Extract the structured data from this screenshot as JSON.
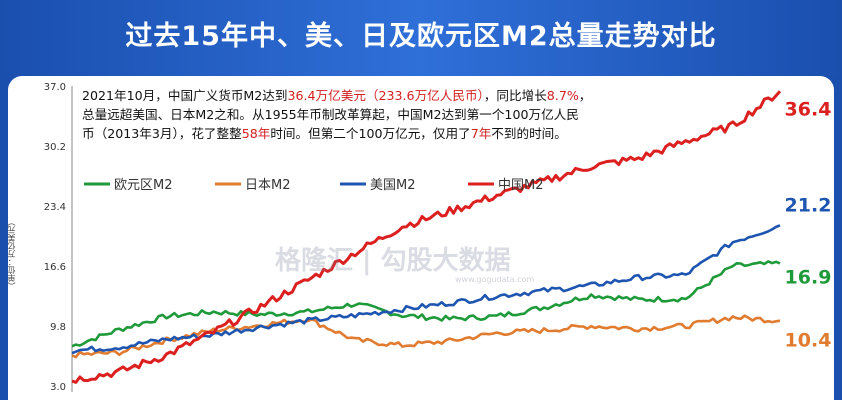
{
  "header": {
    "title": "过去15年中、美、日及欧元区M2总量走势对比"
  },
  "annotation": {
    "seg1": "2021年10月，中国广义货币M2达到",
    "seg2": "36.4万亿美元（233.6万亿人民币）",
    "seg3": "，同比增长",
    "seg4": "8.7%",
    "seg5": "，",
    "seg6": "总量远超美国、日本M2之和。从1955年币制改革算起，中国M2达到第一个100万亿人民",
    "seg7": "币（2013年3月），花了整整",
    "seg8": "58年",
    "seg9": "时间。但第二个100万亿元，仅用了",
    "seg10": "7年",
    "seg11": "不到的时间。"
  },
  "watermark": {
    "text": "格隆汇 | 勾股大数据",
    "url": "www.gogudata.com"
  },
  "colors": {
    "eurozone": "#1f9a3a",
    "japan": "#e07b2f",
    "usa": "#1d55b0",
    "china": "#dc1f1f",
    "highlight": "#d31f1f"
  },
  "chart_data": {
    "type": "line",
    "ylabel": "（单位：万亿美元）",
    "yticks": [
      "37.0",
      "30.2",
      "23.4",
      "16.6",
      "9.8",
      "3.0"
    ],
    "ylim": [
      3.0,
      37.0
    ],
    "grid": false,
    "legend_position": "top-left",
    "x": [
      0,
      1,
      2,
      3,
      4,
      5,
      6,
      7,
      8,
      9,
      10,
      11,
      12,
      13,
      14,
      15
    ],
    "series": [
      {
        "name": "欧元区M2",
        "color": "#1f9a3a",
        "values": [
          7.5,
          9.4,
          10.9,
          11.4,
          11.1,
          11.4,
          12.3,
          11.0,
          10.6,
          10.9,
          11.9,
          13.3,
          12.8,
          12.9,
          16.6,
          16.9
        ],
        "end_label": "16.9"
      },
      {
        "name": "日本M2",
        "color": "#e07b2f",
        "values": [
          6.5,
          6.8,
          8.2,
          9.3,
          9.9,
          10.6,
          8.2,
          7.6,
          8.1,
          9.0,
          9.3,
          9.8,
          9.5,
          9.8,
          10.8,
          10.4
        ],
        "end_label": "10.4"
      },
      {
        "name": "美国M2",
        "color": "#1d55b0",
        "values": [
          7.0,
          7.4,
          8.3,
          8.8,
          9.7,
          10.4,
          11.0,
          11.7,
          12.4,
          13.2,
          13.8,
          14.4,
          15.3,
          15.6,
          19.3,
          21.2
        ],
        "end_label": "21.2"
      },
      {
        "name": "中国M2",
        "color": "#dc1f1f",
        "values": [
          3.7,
          4.6,
          6.5,
          9.1,
          12.0,
          15.0,
          18.1,
          21.1,
          22.8,
          24.6,
          26.2,
          27.9,
          28.8,
          30.7,
          32.5,
          36.4
        ],
        "end_label": "36.4"
      }
    ]
  }
}
